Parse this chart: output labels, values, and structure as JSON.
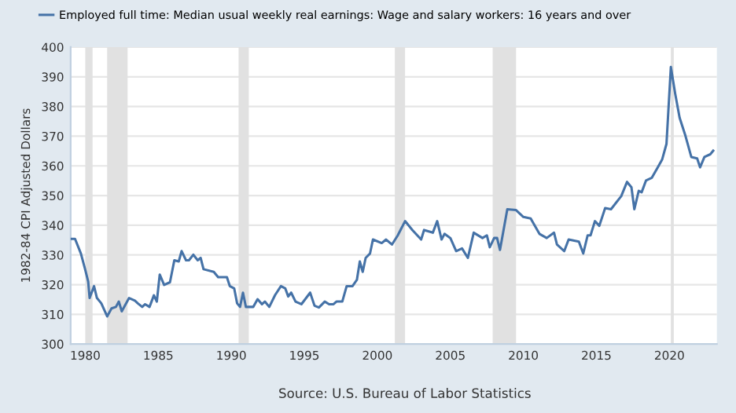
{
  "chart_data": {
    "type": "line",
    "ylabel": "1982-84 CPI Adjusted Dollars",
    "legend": "top",
    "annotations": [
      "Source: U.S. Bureau of Labor Statistics"
    ],
    "xlim": [
      1979,
      2023.25
    ],
    "xticks": [
      1980,
      1985,
      1990,
      1995,
      2000,
      2005,
      2010,
      2015,
      2020
    ],
    "ylim": [
      300,
      400
    ],
    "yticks": [
      300,
      310,
      320,
      330,
      340,
      350,
      360,
      370,
      380,
      390,
      400
    ],
    "grid": "y",
    "bands": [
      {
        "axis": "x",
        "from": 1980.0,
        "to": 1980.5,
        "color": "#e1e1e1"
      },
      {
        "axis": "x",
        "from": 1981.5,
        "to": 1982.9,
        "color": "#e1e1e1"
      },
      {
        "axis": "x",
        "from": 1990.5,
        "to": 1991.2,
        "color": "#e1e1e1"
      },
      {
        "axis": "x",
        "from": 2001.2,
        "to": 2001.9,
        "color": "#e1e1e1"
      },
      {
        "axis": "x",
        "from": 2007.9,
        "to": 2009.5,
        "color": "#e1e1e1"
      },
      {
        "axis": "x",
        "from": 2020.1,
        "to": 2020.3,
        "color": "#e1e1e1"
      }
    ],
    "series": [
      {
        "name": "Employed full time: Median usual weekly real earnings: Wage and salary workers: 16 years and over",
        "color": "#4572a7",
        "x": [
          1979.0,
          1979.3,
          1979.7,
          1980.0,
          1980.2,
          1980.3,
          1980.6,
          1980.8,
          1981.1,
          1981.5,
          1981.8,
          1982.1,
          1982.3,
          1982.5,
          1983.0,
          1983.4,
          1983.6,
          1983.9,
          1984.1,
          1984.4,
          1984.7,
          1984.9,
          1985.1,
          1985.4,
          1985.8,
          1986.1,
          1986.4,
          1986.6,
          1986.9,
          1987.1,
          1987.4,
          1987.7,
          1987.9,
          1988.1,
          1988.8,
          1989.1,
          1989.7,
          1989.9,
          1990.2,
          1990.4,
          1990.6,
          1990.8,
          1991.0,
          1991.5,
          1991.8,
          1992.1,
          1992.3,
          1992.6,
          1993.0,
          1993.4,
          1993.7,
          1993.9,
          1994.1,
          1994.4,
          1994.8,
          1995.4,
          1995.7,
          1996.0,
          1996.4,
          1996.7,
          1997.0,
          1997.2,
          1997.6,
          1997.9,
          1998.3,
          1998.6,
          1998.8,
          1999.0,
          1999.2,
          1999.5,
          1999.7,
          2000.3,
          2000.6,
          2001.0,
          2001.4,
          2001.9,
          2002.4,
          2003.0,
          2003.2,
          2003.8,
          2004.1,
          2004.4,
          2004.6,
          2005.0,
          2005.4,
          2005.8,
          2006.2,
          2006.6,
          2007.2,
          2007.5,
          2007.7,
          2008.0,
          2008.2,
          2008.4,
          2008.9,
          2009.5,
          2010.0,
          2010.5,
          2011.1,
          2011.6,
          2012.1,
          2012.3,
          2012.8,
          2013.1,
          2013.8,
          2014.1,
          2014.4,
          2014.6,
          2014.9,
          2015.2,
          2015.6,
          2016.0,
          2016.7,
          2017.1,
          2017.4,
          2017.6,
          2017.9,
          2018.1,
          2018.4,
          2018.8,
          2019.2,
          2019.5,
          2019.8,
          2020.1,
          2020.4,
          2020.7,
          2021.1,
          2021.5,
          2021.9,
          2022.1,
          2022.4,
          2022.8,
          2023.0
        ],
        "values": [
          335.4,
          335.4,
          330.5,
          325,
          321,
          315.5,
          319.5,
          315.5,
          313.7,
          309.3,
          312,
          312.5,
          314.3,
          311,
          315.5,
          314.6,
          313.7,
          312.5,
          313.4,
          312.5,
          316.4,
          314.3,
          323.4,
          319.9,
          320.8,
          328.2,
          327.8,
          331.3,
          328.2,
          328.2,
          330.1,
          328.2,
          329,
          325.2,
          324.3,
          322.5,
          322.5,
          319.5,
          318.7,
          313.7,
          312.5,
          317.3,
          312.5,
          312.5,
          315.1,
          313.4,
          314.3,
          312.5,
          316.5,
          319.5,
          318.7,
          316,
          317.3,
          314.3,
          313.4,
          317.3,
          312.9,
          312.3,
          314.3,
          313.4,
          313.4,
          314.3,
          314.3,
          319.5,
          319.5,
          321.6,
          327.8,
          324.3,
          329,
          330.5,
          335.2,
          334,
          335.2,
          333.5,
          336.6,
          341.4,
          338.4,
          335.2,
          338.4,
          337.5,
          341.4,
          335.2,
          337.1,
          335.7,
          331.3,
          332.2,
          329,
          337.5,
          335.7,
          336.6,
          332.6,
          335.7,
          335.7,
          331.7,
          345.4,
          345.1,
          342.8,
          342.3,
          337.1,
          335.7,
          337.5,
          333.5,
          331.3,
          335.2,
          334.5,
          330.5,
          336.6,
          336.6,
          341.4,
          339.8,
          345.8,
          345.4,
          349.8,
          354.6,
          352.8,
          345.4,
          351.6,
          351.1,
          355.1,
          356,
          359.5,
          362.1,
          367.4,
          393.3,
          384.2,
          376.2,
          370.1,
          363,
          362.5,
          359.5,
          363,
          363.9,
          365.1
        ]
      }
    ]
  }
}
